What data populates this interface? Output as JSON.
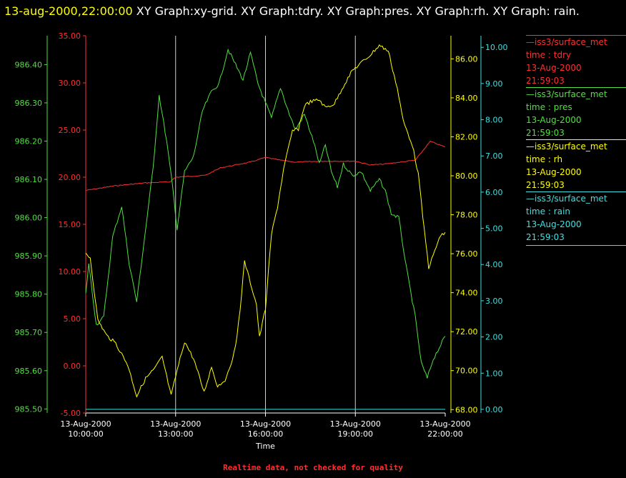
{
  "header": {
    "time": "13-aug-2000,22:00:00",
    "graphs": "  XY Graph:xy-grid.  XY Graph:tdry.  XY Graph:pres.  XY Graph:rh.  XY Graph: rain."
  },
  "footer_note": "Realtime data, not checked for quality",
  "legend": [
    {
      "line": "—iss3/surface_met",
      "var": "time : tdry",
      "date": "13-Aug-2000",
      "time": "21:59:03",
      "color": "#ff3030"
    },
    {
      "line": "—iss3/surface_met",
      "var": "time : pres",
      "date": "13-Aug-2000",
      "time": "21:59:03",
      "color": "#50e040"
    },
    {
      "line": "—iss3/surface_met",
      "var": "time : rh",
      "date": "13-Aug-2000",
      "time": "21:59:03",
      "color": "#ffff00"
    },
    {
      "line": "—iss3/surface_met",
      "var": "time : rain",
      "date": "13-Aug-2000",
      "time": "21:59:03",
      "color": "#40e0e0"
    }
  ],
  "chart_data": {
    "type": "line",
    "xlabel": "Time",
    "x_ticks": [
      {
        "hour": 10,
        "date": "13-Aug-2000",
        "time": "10:00:00"
      },
      {
        "hour": 13,
        "date": "13-Aug-2000",
        "time": "13:00:00"
      },
      {
        "hour": 16,
        "date": "13-Aug-2000",
        "time": "16:00:00"
      },
      {
        "hour": 19,
        "date": "13-Aug-2000",
        "time": "19:00:00"
      },
      {
        "hour": 22,
        "date": "13-Aug-2000",
        "time": "22:00:00"
      }
    ],
    "xlim": [
      10,
      22
    ],
    "grid": "vertical lines at x ticks",
    "axes": [
      {
        "id": "tdry",
        "color": "#ff3030",
        "ylim": [
          -5,
          35
        ],
        "ticks": [
          "-5.00",
          "0.00",
          "5.00",
          "10.00",
          "15.00",
          "20.00",
          "25.00",
          "30.00",
          "35.00"
        ],
        "tick_values": [
          -5,
          0,
          5,
          10,
          15,
          20,
          25,
          30,
          35
        ]
      },
      {
        "id": "pres",
        "color": "#50e040",
        "ylim": [
          985.4894,
          986.4755
        ],
        "ticks": [
          "985.50",
          "985.60",
          "985.70",
          "985.80",
          "985.90",
          "986.00",
          "986.10",
          "986.20",
          "986.30",
          "986.40"
        ],
        "tick_values": [
          985.5,
          985.6,
          985.7,
          985.8,
          985.9,
          986.0,
          986.1,
          986.2,
          986.3,
          986.4
        ]
      },
      {
        "id": "rh",
        "color": "#ffff00",
        "ylim": [
          67.826,
          87.188
        ],
        "ticks": [
          "68.00",
          "70.00",
          "72.00",
          "74.00",
          "76.00",
          "78.00",
          "80.00",
          "82.00",
          "84.00",
          "86.00"
        ],
        "tick_values": [
          68,
          70,
          72,
          74,
          76,
          78,
          80,
          82,
          84,
          86
        ]
      },
      {
        "id": "rain",
        "color": "#40e0e0",
        "ylim": [
          -0.1,
          10.32
        ],
        "ticks": [
          "0.00",
          "1.00",
          "2.00",
          "3.00",
          "4.00",
          "5.00",
          "6.00",
          "7.00",
          "8.00",
          "9.00",
          "10.00"
        ],
        "tick_values": [
          0,
          1,
          2,
          3,
          4,
          5,
          6,
          7,
          8,
          9,
          10
        ]
      }
    ],
    "series": [
      {
        "axis": "tdry",
        "color": "#ff3030",
        "x": [
          10,
          11,
          12,
          12.8,
          13,
          14,
          14.5,
          15,
          15.5,
          16,
          16.5,
          17,
          18,
          19,
          19.5,
          20,
          21,
          21.5,
          22
        ],
        "y": [
          18.6,
          19.1,
          19.4,
          19.5,
          20.0,
          20.2,
          21.0,
          21.3,
          21.6,
          22.1,
          21.8,
          21.6,
          21.7,
          21.7,
          21.3,
          21.4,
          21.8,
          23.8,
          23.2
        ]
      },
      {
        "axis": "pres",
        "color": "#50e040",
        "x": [
          10,
          10.1,
          10.35,
          10.6,
          10.9,
          11.2,
          11.45,
          11.7,
          12.0,
          12.25,
          12.45,
          12.7,
          12.9,
          13.05,
          13.3,
          13.6,
          13.9,
          14.2,
          14.45,
          14.75,
          15.0,
          15.25,
          15.5,
          15.75,
          15.95,
          16.2,
          16.5,
          16.8,
          17.0,
          17.3,
          17.6,
          17.8,
          18.0,
          18.2,
          18.4,
          18.6,
          18.9,
          19.2,
          19.5,
          19.8,
          20.0,
          20.2,
          20.45,
          20.7,
          21.0,
          21.2,
          21.4,
          21.6,
          21.8,
          22.0
        ],
        "y": [
          985.8,
          985.88,
          985.72,
          985.74,
          985.95,
          986.03,
          985.88,
          985.78,
          985.97,
          986.13,
          986.32,
          986.2,
          986.08,
          985.97,
          986.12,
          986.16,
          986.28,
          986.33,
          986.35,
          986.44,
          986.4,
          986.36,
          986.43,
          986.35,
          986.31,
          986.26,
          986.34,
          986.27,
          986.23,
          986.27,
          986.2,
          986.14,
          986.19,
          986.12,
          986.08,
          986.14,
          986.11,
          986.12,
          986.07,
          986.1,
          986.07,
          986.01,
          986.0,
          985.87,
          985.74,
          985.62,
          985.58,
          985.63,
          985.66,
          985.69
        ]
      },
      {
        "axis": "rh",
        "color": "#ffff00",
        "x": [
          10,
          10.15,
          10.4,
          10.7,
          11.0,
          11.4,
          11.7,
          12.0,
          12.3,
          12.55,
          12.85,
          13.0,
          13.3,
          13.6,
          13.95,
          14.2,
          14.4,
          14.7,
          15.0,
          15.15,
          15.3,
          15.5,
          15.7,
          15.8,
          16.0,
          16.2,
          16.4,
          16.6,
          16.9,
          17.1,
          17.3,
          17.5,
          17.8,
          18.0,
          18.3,
          18.6,
          18.9,
          19.2,
          19.5,
          19.8,
          20.1,
          20.4,
          20.6,
          20.9,
          21.1,
          21.3,
          21.45,
          21.6,
          21.8,
          22.0
        ],
        "y": [
          76.0,
          75.8,
          72.6,
          71.8,
          71.4,
          70.3,
          68.7,
          69.6,
          70.1,
          70.7,
          68.7,
          69.7,
          71.5,
          70.6,
          68.9,
          70.2,
          69.2,
          69.6,
          71.2,
          73.1,
          75.6,
          74.5,
          73.4,
          71.7,
          73.2,
          77.0,
          78.4,
          80.3,
          82.3,
          82.4,
          83.6,
          83.8,
          83.9,
          83.5,
          83.7,
          84.6,
          85.4,
          85.8,
          86.2,
          86.7,
          86.4,
          84.5,
          82.8,
          81.6,
          80.1,
          77.2,
          75.3,
          75.9,
          76.8,
          77.1
        ]
      },
      {
        "axis": "rain",
        "color": "#40e0e0",
        "x": [
          10,
          22
        ],
        "y": [
          0,
          0
        ]
      }
    ]
  }
}
